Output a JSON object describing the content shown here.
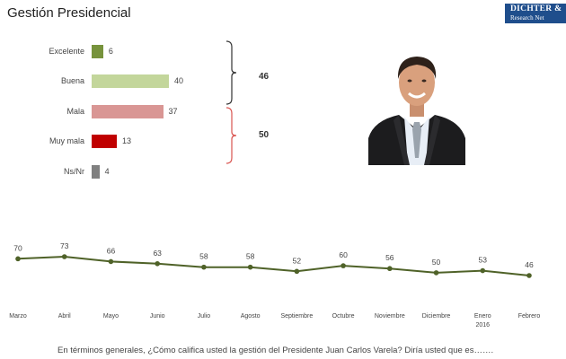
{
  "title": "Gestión Presidencial",
  "logo": {
    "line1": "DICHTER &",
    "line2": "Research Net"
  },
  "chart_data": [
    {
      "type": "bar",
      "orientation": "horizontal",
      "categories": [
        "Excelente",
        "Buena",
        "Mala",
        "Muy mala",
        "Ns/Nr"
      ],
      "values": [
        6,
        40,
        37,
        13,
        4
      ],
      "colors": [
        "#77933c",
        "#c3d69b",
        "#d99694",
        "#c00000",
        "#808080"
      ],
      "groups": [
        {
          "members": [
            "Excelente",
            "Buena"
          ],
          "total": "46",
          "bracket_color": "#333333"
        },
        {
          "members": [
            "Mala",
            "Muy mala"
          ],
          "total": "50",
          "bracket_color": "#d9534f"
        }
      ]
    },
    {
      "type": "line",
      "categories": [
        "Marzo",
        "Abril",
        "Mayo",
        "Junio",
        "Julio",
        "Agosto",
        "Septiembre",
        "Octubre",
        "Noviembre",
        "Diciembre",
        "Enero 2016",
        "Febrero"
      ],
      "values": [
        70,
        73,
        66,
        63,
        58,
        58,
        52,
        60,
        56,
        50,
        53,
        46
      ],
      "color": "#4f6228",
      "grid": false
    }
  ],
  "photo": {
    "subject": "man-in-suit-portrait"
  },
  "footnote": "En términos generales, ¿Cómo califica usted la gestión del Presidente Juan Carlos Varela? Diría usted que es……."
}
